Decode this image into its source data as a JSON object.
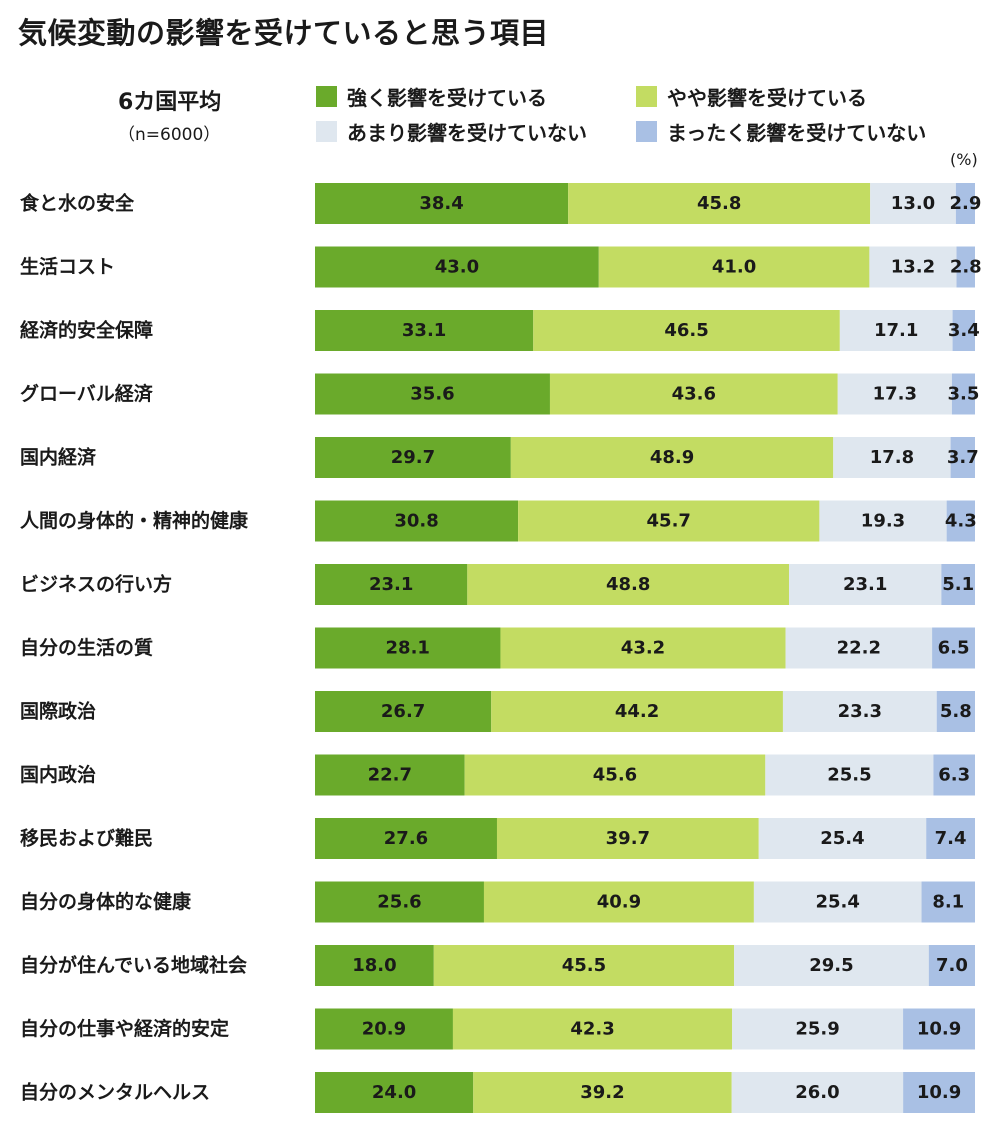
{
  "chart_data": {
    "type": "bar",
    "orientation": "horizontal",
    "stacked": true,
    "title": "気候変動の影響を受けていると思う項目",
    "subtitle": "6カ国平均",
    "sample_note": "（n=6000）",
    "unit": "(%)",
    "categories": [
      "食と水の安全",
      "生活コスト",
      "経済的安全保障",
      "グローバル経済",
      "国内経済",
      "人間の身体的・精神的健康",
      "ビジネスの行い方",
      "自分の生活の質",
      "国際政治",
      "国内政治",
      "移民および難民",
      "自分の身体的な健康",
      "自分が住んでいる地域社会",
      "自分の仕事や経済的安定",
      "自分のメンタルヘルス"
    ],
    "series": [
      {
        "name": "強く影響を受けている",
        "color": "#6aaa2b",
        "values": [
          38.4,
          43.0,
          33.1,
          35.6,
          29.7,
          30.8,
          23.1,
          28.1,
          26.7,
          22.7,
          27.6,
          25.6,
          18.0,
          20.9,
          24.0
        ],
        "labels": [
          "38.4",
          "43.0",
          "33.1",
          "35.6",
          "29.7",
          "30.8",
          "23.1",
          "28.1",
          "26.7",
          "22.7",
          "27.6",
          "25.6",
          "18.0",
          "20.9",
          "24.0"
        ]
      },
      {
        "name": "やや影響を受けている",
        "color": "#c3dc62",
        "values": [
          45.8,
          41.0,
          46.5,
          43.6,
          48.9,
          45.7,
          48.8,
          43.2,
          44.2,
          45.6,
          39.7,
          40.9,
          45.5,
          42.3,
          39.2
        ],
        "labels": [
          "45.8",
          "41.0",
          "46.5",
          "43.6",
          "48.9",
          "45.7",
          "48.8",
          "43.2",
          "44.2",
          "45.6",
          "39.7",
          "40.9",
          "45.5",
          "42.3",
          "39.2"
        ]
      },
      {
        "name": "あまり影響を受けていない",
        "color": "#dfe7ef",
        "values": [
          13.0,
          13.2,
          17.1,
          17.3,
          17.8,
          19.3,
          23.1,
          22.2,
          23.3,
          25.5,
          25.4,
          25.4,
          29.5,
          25.9,
          26.0
        ],
        "labels": [
          "13.0",
          "13.2",
          "17.1",
          "17.3",
          "17.8",
          "19.3",
          "23.1",
          "22.2",
          "23.3",
          "25.5",
          "25.4",
          "25.4",
          "29.5",
          "25.9",
          "26.0"
        ]
      },
      {
        "name": "まったく影響を受けていない",
        "color": "#a9c0e4",
        "values": [
          2.9,
          2.8,
          3.4,
          3.5,
          3.7,
          4.3,
          5.1,
          6.5,
          5.8,
          6.3,
          7.4,
          8.1,
          7.0,
          10.9,
          10.9
        ],
        "labels": [
          "2.9",
          "2.8",
          "3.4",
          "3.5",
          "3.7",
          "4.3",
          "5.1",
          "6.5",
          "5.8",
          "6.3",
          "7.4",
          "8.1",
          "7.0",
          "10.9",
          "10.9"
        ]
      }
    ],
    "xlim": [
      0,
      100
    ],
    "legend_position": "top-right",
    "grid": false
  }
}
